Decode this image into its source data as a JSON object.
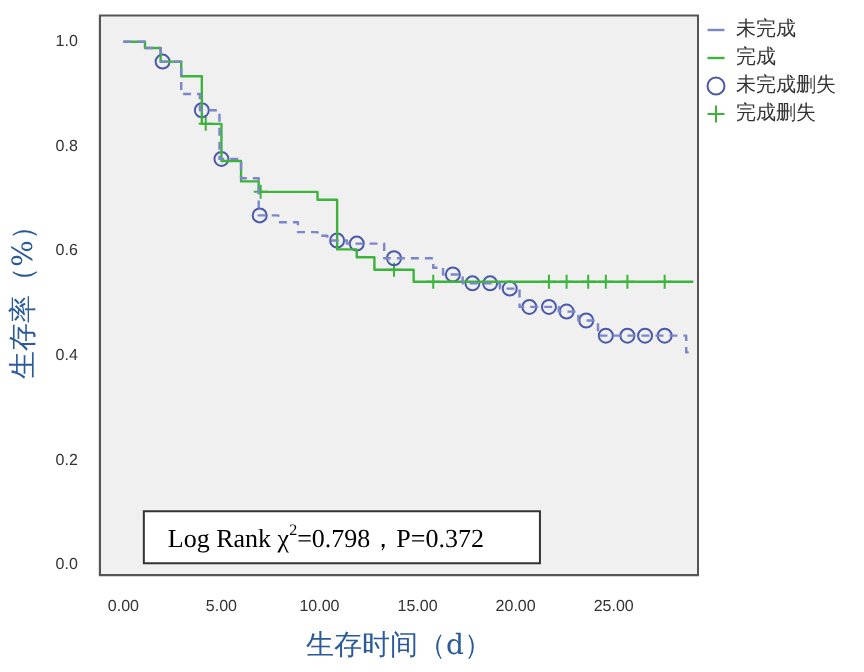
{
  "chart_data": {
    "type": "step",
    "xlabel": "生存时间（d）",
    "ylabel": "生存率（%）",
    "xlim": [
      -1.2,
      29.3
    ],
    "ylim": [
      -0.02,
      1.05
    ],
    "xticks": [
      {
        "value": 0,
        "label": "0.00"
      },
      {
        "value": 5,
        "label": "5.00"
      },
      {
        "value": 10,
        "label": "10.00"
      },
      {
        "value": 15,
        "label": "15.00"
      },
      {
        "value": 20,
        "label": "20.00"
      },
      {
        "value": 25,
        "label": "25.00"
      }
    ],
    "yticks": [
      {
        "value": 0,
        "label": "0.0"
      },
      {
        "value": 0.2,
        "label": "0.2"
      },
      {
        "value": 0.4,
        "label": "0.4"
      },
      {
        "value": 0.6,
        "label": "0.6"
      },
      {
        "value": 0.8,
        "label": "0.8"
      },
      {
        "value": 1,
        "label": "1.0"
      }
    ],
    "grid": false,
    "legend": "right",
    "annotations": [
      "Log Rank χ$^{2}$=0.798，P=0.372"
    ],
    "series": [
      {
        "name": "未完成",
        "type": "step",
        "color": "#7b86c8",
        "line_style": "dashed",
        "x": [
          0,
          1.1,
          1.9,
          2.95,
          3.9,
          4.9,
          6.0,
          6.9,
          7.9,
          8.9,
          9.9,
          10.4,
          11.4,
          13.3,
          15.8,
          16.3,
          17.3,
          19.2,
          20.2,
          22.2,
          23.2,
          24.2,
          28.7,
          29.06
        ],
        "values": [
          1,
          0.988,
          0.962,
          0.9,
          0.869,
          0.776,
          0.739,
          0.668,
          0.655,
          0.636,
          0.629,
          0.62,
          0.614,
          0.586,
          0.568,
          0.555,
          0.538,
          0.528,
          0.493,
          0.484,
          0.467,
          0.438,
          0.406,
          0.406
        ]
      },
      {
        "name": "完成",
        "type": "step",
        "color": "#3cb43c",
        "line_style": "solid",
        "x": [
          0,
          1.1,
          1.9,
          2.95,
          4.0,
          5.0,
          6.0,
          6.9,
          9.9,
          10.9,
          11.9,
          12.8,
          14.8,
          29.06
        ],
        "values": [
          1,
          0.988,
          0.962,
          0.934,
          0.843,
          0.772,
          0.733,
          0.713,
          0.698,
          0.603,
          0.588,
          0.564,
          0.541,
          0.541
        ]
      },
      {
        "name": "未完成删失",
        "type": "scatter",
        "marker": "circle",
        "color": "#4a5aa8",
        "x": [
          2.0,
          4.0,
          5.0,
          6.95,
          10.9,
          11.9,
          13.8,
          16.8,
          17.8,
          18.7,
          19.7,
          20.7,
          21.7,
          22.6,
          23.6,
          24.6,
          25.7,
          26.6,
          27.6
        ],
        "values": [
          0.962,
          0.869,
          0.776,
          0.668,
          0.62,
          0.614,
          0.586,
          0.555,
          0.538,
          0.538,
          0.528,
          0.493,
          0.493,
          0.484,
          0.467,
          0.438,
          0.438,
          0.438,
          0.438
        ]
      },
      {
        "name": "完成删失",
        "type": "scatter",
        "marker": "cross",
        "color": "#3cb43c",
        "x": [
          4.2,
          7.0,
          13.8,
          15.8,
          21.7,
          22.6,
          23.7,
          24.6,
          25.7,
          27.6
        ],
        "values": [
          0.843,
          0.713,
          0.564,
          0.541,
          0.541,
          0.541,
          0.541,
          0.541,
          0.541,
          0.541
        ]
      }
    ]
  }
}
